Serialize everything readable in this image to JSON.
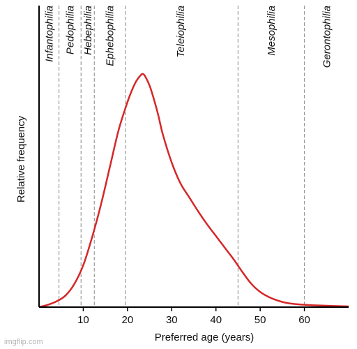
{
  "chart_data": {
    "type": "line",
    "xlabel": "Preferred age (years)",
    "ylabel": "Relative frequency",
    "xlim": [
      0,
      70
    ],
    "ylim": [
      0,
      1
    ],
    "xticks": [
      10,
      20,
      30,
      40,
      50,
      60
    ],
    "line_color": "#d62728",
    "divider_color": "#9a9a9a",
    "series": [
      {
        "x": [
          0,
          2,
          4,
          6,
          8,
          10,
          12,
          14,
          16,
          18,
          20,
          21,
          22,
          23,
          23.5,
          24,
          25,
          26,
          27,
          28,
          30,
          32,
          34,
          36,
          38,
          40,
          42,
          44,
          46,
          48,
          50,
          52,
          54,
          56,
          58,
          60,
          62,
          65,
          68,
          70
        ],
        "y": [
          0.0,
          0.01,
          0.025,
          0.05,
          0.1,
          0.18,
          0.3,
          0.44,
          0.6,
          0.76,
          0.88,
          0.93,
          0.97,
          0.995,
          1.0,
          0.99,
          0.95,
          0.89,
          0.82,
          0.74,
          0.62,
          0.53,
          0.47,
          0.41,
          0.355,
          0.305,
          0.255,
          0.205,
          0.15,
          0.1,
          0.065,
          0.043,
          0.028,
          0.018,
          0.013,
          0.01,
          0.008,
          0.006,
          0.004,
          0.003
        ]
      }
    ],
    "dividers": [
      4.5,
      9.5,
      12.5,
      19.5,
      45,
      60
    ],
    "regions": [
      {
        "label": "Infantophilia",
        "x": 2.3
      },
      {
        "label": "Pedophilia",
        "x": 7.0
      },
      {
        "label": "Hebephilia",
        "x": 11.0
      },
      {
        "label": "Ephebophilia",
        "x": 16.0
      },
      {
        "label": "Teleiophilia",
        "x": 32.0
      },
      {
        "label": "Mesophilia",
        "x": 52.5
      },
      {
        "label": "Gerontophilia",
        "x": 65.0
      }
    ]
  },
  "watermark": "imgflip.com"
}
